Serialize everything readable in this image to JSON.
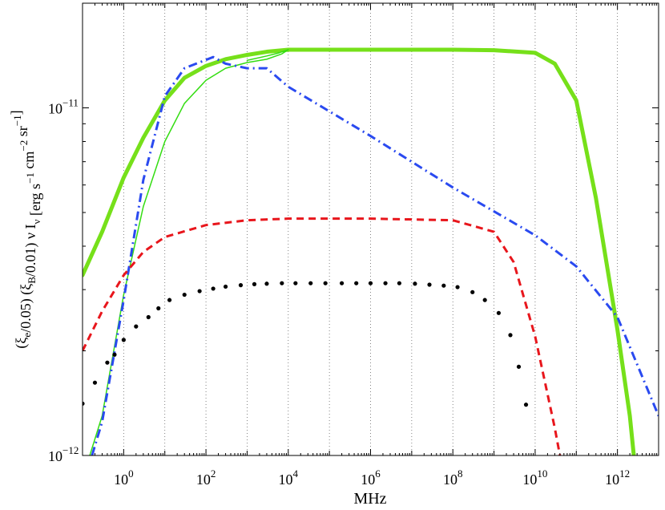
{
  "chart_data": {
    "type": "line",
    "title": "",
    "xlabel": "MHz",
    "ylabel": {
      "parts": [
        {
          "t": "(ξ"
        },
        {
          "t": "e",
          "sub": true
        },
        {
          "t": "/0.05) (ξ"
        },
        {
          "t": "B",
          "sub": true
        },
        {
          "t": "/0.01) ν I"
        },
        {
          "t": "ν",
          "sub": true
        },
        {
          "t": " [erg s"
        },
        {
          "t": "−1",
          "sup": true
        },
        {
          "t": " cm"
        },
        {
          "t": "−2",
          "sup": true
        },
        {
          "t": " sr"
        },
        {
          "t": "−1",
          "sup": true
        },
        {
          "t": "]"
        }
      ]
    },
    "x_scale": "log",
    "y_scale": "log",
    "xlim": [
      0.1,
      10000000000000.0
    ],
    "ylim": [
      1e-12,
      2e-11
    ],
    "grid": "vertical-dotted-at-decades",
    "x_ticks": [
      {
        "value": 1,
        "base": "10",
        "exp": "0"
      },
      {
        "value": 100,
        "base": "10",
        "exp": "2"
      },
      {
        "value": 10000,
        "base": "10",
        "exp": "4"
      },
      {
        "value": 1000000,
        "base": "10",
        "exp": "6"
      },
      {
        "value": 100000000,
        "base": "10",
        "exp": "8"
      },
      {
        "value": 10000000000,
        "base": "10",
        "exp": "10"
      },
      {
        "value": 1000000000000,
        "base": "10",
        "exp": "12"
      }
    ],
    "y_ticks": [
      {
        "value": 1e-12,
        "base": "10",
        "exp": "−12"
      },
      {
        "value": 1e-11,
        "base": "10",
        "exp": "−11"
      }
    ],
    "series": [
      {
        "style": "solid-thick",
        "color": "#76e01a",
        "width": 5,
        "points": [
          [
            0.1,
            3.3e-12
          ],
          [
            0.3,
            4.4e-12
          ],
          [
            1,
            6.3e-12
          ],
          [
            3,
            8.2e-12
          ],
          [
            10,
            1.05e-11
          ],
          [
            30,
            1.22e-11
          ],
          [
            100,
            1.32e-11
          ],
          [
            300,
            1.38e-11
          ],
          [
            1000,
            1.42e-11
          ],
          [
            3000,
            1.45e-11
          ],
          [
            10000,
            1.47e-11
          ],
          [
            1000000.0,
            1.47e-11
          ],
          [
            100000000.0,
            1.47e-11
          ],
          [
            1000000000.0,
            1.465e-11
          ],
          [
            10000000000.0,
            1.44e-11
          ],
          [
            30000000000.0,
            1.34e-11
          ],
          [
            100000000000.0,
            1.05e-11
          ],
          [
            300000000000.0,
            5.5e-12
          ],
          [
            1000000000000.0,
            2.3e-12
          ],
          [
            2000000000000.0,
            1.3e-12
          ],
          [
            2500000000000.0,
            1e-12
          ]
        ]
      },
      {
        "style": "solid-thin",
        "color": "#33dd11",
        "width": 1.5,
        "points": [
          [
            0.15,
            1e-12
          ],
          [
            0.3,
            1.3e-12
          ],
          [
            1,
            2.9e-12
          ],
          [
            3,
            5.2e-12
          ],
          [
            10,
            8e-12
          ],
          [
            30,
            1.03e-11
          ],
          [
            100,
            1.2e-11
          ],
          [
            300,
            1.3e-11
          ],
          [
            1000,
            1.35e-11
          ],
          [
            3000,
            1.38e-11
          ],
          [
            7000,
            1.43e-11
          ],
          [
            10000,
            1.47e-11
          ]
        ]
      },
      {
        "style": "solid-thin",
        "color": "#33dd11",
        "width": 1.5,
        "points": [
          [
            1000,
            1.37e-11
          ],
          [
            3000,
            1.41e-11
          ],
          [
            6000,
            1.44e-11
          ],
          [
            10000,
            1.47e-11
          ]
        ]
      },
      {
        "style": "dashdot",
        "color": "#2a4af0",
        "width": 3,
        "points": [
          [
            0.17,
            1e-12
          ],
          [
            0.3,
            1.25e-12
          ],
          [
            1,
            2.8e-12
          ],
          [
            3,
            6.2e-12
          ],
          [
            10,
            1.08e-11
          ],
          [
            30,
            1.3e-11
          ],
          [
            150,
            1.4e-11
          ],
          [
            300,
            1.34e-11
          ],
          [
            1000,
            1.3e-11
          ],
          [
            3000,
            1.3e-11
          ],
          [
            10000,
            1.15e-11
          ],
          [
            1000000.0,
            8.3e-12
          ],
          [
            100000000.0,
            5.9e-12
          ],
          [
            10000000000.0,
            4.3e-12
          ],
          [
            100000000000.0,
            3.5e-12
          ],
          [
            1000000000000.0,
            2.5e-12
          ],
          [
            10000000000000.0,
            1.3e-12
          ]
        ]
      },
      {
        "style": "dashed",
        "color": "#e8161c",
        "width": 3,
        "points": [
          [
            0.1,
            2e-12
          ],
          [
            0.3,
            2.6e-12
          ],
          [
            1,
            3.3e-12
          ],
          [
            3,
            3.85e-12
          ],
          [
            10,
            4.25e-12
          ],
          [
            100,
            4.6e-12
          ],
          [
            1000,
            4.75e-12
          ],
          [
            10000,
            4.8e-12
          ],
          [
            1000000.0,
            4.8e-12
          ],
          [
            100000000.0,
            4.75e-12
          ],
          [
            1000000000.0,
            4.4e-12
          ],
          [
            3000000000.0,
            3.6e-12
          ],
          [
            10000000000.0,
            2.2e-12
          ],
          [
            30000000000.0,
            1.2e-12
          ],
          [
            40000000000.0,
            1e-12
          ]
        ]
      },
      {
        "style": "dotted",
        "color": "#000000",
        "width": 0,
        "points": [
          [
            0.1,
            1.41e-12
          ],
          [
            0.2,
            1.62e-12
          ],
          [
            0.4,
            1.85e-12
          ],
          [
            0.6,
            1.95e-12
          ],
          [
            1,
            2.15e-12
          ],
          [
            2,
            2.35e-12
          ],
          [
            4,
            2.5e-12
          ],
          [
            7,
            2.65e-12
          ],
          [
            13,
            2.8e-12
          ],
          [
            30,
            2.9e-12
          ],
          [
            70,
            2.97e-12
          ],
          [
            150,
            3.02e-12
          ],
          [
            300,
            3.06e-12
          ],
          [
            700,
            3.09e-12
          ],
          [
            1500,
            3.11e-12
          ],
          [
            3000,
            3.12e-12
          ],
          [
            7000,
            3.13e-12
          ],
          [
            15000,
            3.13e-12
          ],
          [
            35000,
            3.13e-12
          ],
          [
            80000,
            3.13e-12
          ],
          [
            200000,
            3.13e-12
          ],
          [
            450000,
            3.13e-12
          ],
          [
            1000000.0,
            3.13e-12
          ],
          [
            2300000.0,
            3.13e-12
          ],
          [
            5000000.0,
            3.13e-12
          ],
          [
            12000000.0,
            3.12e-12
          ],
          [
            27000000.0,
            3.1e-12
          ],
          [
            60000000.0,
            3.08e-12
          ],
          [
            130000000.0,
            3.05e-12
          ],
          [
            300000000.0,
            2.95e-12
          ],
          [
            600000000.0,
            2.8e-12
          ],
          [
            1300000000.0,
            2.57e-12
          ],
          [
            2500000000.0,
            2.22e-12
          ],
          [
            4000000000.0,
            1.8e-12
          ],
          [
            6000000000.0,
            1.4e-12
          ]
        ]
      }
    ]
  }
}
